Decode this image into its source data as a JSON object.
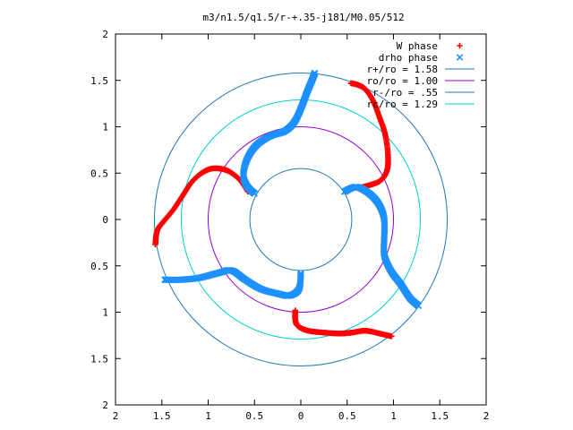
{
  "chart_data": {
    "type": "scatter",
    "title": "m3/n1.5/q1.5/r-+.35-j181/M0.05/512",
    "xlabel": "",
    "ylabel": "",
    "xlim": [
      -2,
      2
    ],
    "ylim": [
      -2,
      2
    ],
    "x_ticks": [
      -2,
      -1.5,
      -1,
      -0.5,
      0,
      0.5,
      1,
      1.5,
      2
    ],
    "y_ticks": [
      -2,
      -1.5,
      -1,
      -0.5,
      0,
      0.5,
      1,
      1.5,
      2
    ],
    "x_tick_labels": [
      "2",
      "1.5",
      "1",
      "0.5",
      "0",
      "0.5",
      "1",
      "1.5",
      "2"
    ],
    "y_tick_labels": [
      "2",
      "1.5",
      "1",
      "0.5",
      "0",
      "0.5",
      "1",
      "1.5",
      "2"
    ],
    "grid": false,
    "legend_position": "top-right",
    "series": [
      {
        "name": "W phase",
        "kind": "points",
        "marker": "+",
        "color": "#ff0000",
        "arms": [
          [
            [
              0.54,
              1.47
            ],
            [
              0.62,
              1.45
            ],
            [
              0.7,
              1.4
            ],
            [
              0.78,
              1.28
            ],
            [
              0.85,
              1.1
            ],
            [
              0.91,
              0.92
            ],
            [
              0.94,
              0.7
            ],
            [
              0.93,
              0.53
            ],
            [
              0.86,
              0.42
            ],
            [
              0.74,
              0.37
            ],
            [
              0.62,
              0.34
            ]
          ],
          [
            [
              -1.57,
              -0.27
            ],
            [
              -1.55,
              -0.12
            ],
            [
              -1.48,
              -0.02
            ],
            [
              -1.38,
              0.1
            ],
            [
              -1.28,
              0.25
            ],
            [
              -1.18,
              0.4
            ],
            [
              -1.07,
              0.5
            ],
            [
              -0.95,
              0.55
            ],
            [
              -0.8,
              0.53
            ],
            [
              -0.67,
              0.44
            ],
            [
              -0.6,
              0.35
            ],
            [
              -0.57,
              0.3
            ]
          ],
          [
            [
              -0.06,
              -0.98
            ],
            [
              -0.06,
              -1.08
            ],
            [
              -0.03,
              -1.15
            ],
            [
              0.08,
              -1.2
            ],
            [
              0.25,
              -1.22
            ],
            [
              0.42,
              -1.23
            ],
            [
              0.55,
              -1.22
            ],
            [
              0.7,
              -1.2
            ],
            [
              0.85,
              -1.23
            ],
            [
              0.98,
              -1.26
            ]
          ]
        ]
      },
      {
        "name": "drho phase",
        "kind": "points",
        "marker": "x",
        "color": "#1e90ff",
        "arms": [
          [
            [
              0.15,
              1.58
            ],
            [
              0.12,
              1.5
            ],
            [
              0.07,
              1.38
            ],
            [
              0.01,
              1.22
            ],
            [
              -0.07,
              1.05
            ],
            [
              -0.18,
              0.95
            ],
            [
              -0.33,
              0.9
            ],
            [
              -0.48,
              0.8
            ],
            [
              -0.58,
              0.65
            ],
            [
              -0.62,
              0.48
            ],
            [
              -0.58,
              0.36
            ],
            [
              -0.5,
              0.28
            ]
          ],
          [
            [
              -1.47,
              -0.65
            ],
            [
              -1.3,
              -0.65
            ],
            [
              -1.1,
              -0.63
            ],
            [
              -0.9,
              -0.58
            ],
            [
              -0.75,
              -0.55
            ],
            [
              -0.6,
              -0.65
            ],
            [
              -0.43,
              -0.75
            ],
            [
              -0.25,
              -0.8
            ],
            [
              -0.12,
              -0.82
            ],
            [
              -0.02,
              -0.75
            ],
            [
              0.0,
              -0.58
            ]
          ],
          [
            [
              0.47,
              0.3
            ],
            [
              0.6,
              0.35
            ],
            [
              0.75,
              0.27
            ],
            [
              0.85,
              0.15
            ],
            [
              0.9,
              0.0
            ],
            [
              0.9,
              -0.2
            ],
            [
              0.9,
              -0.38
            ],
            [
              0.97,
              -0.55
            ],
            [
              1.08,
              -0.7
            ],
            [
              1.18,
              -0.85
            ],
            [
              1.27,
              -0.93
            ]
          ]
        ]
      },
      {
        "name": "r+/ro = 1.58",
        "kind": "circle",
        "radius": 1.58,
        "color": "#1f77b4"
      },
      {
        "name": "ro/ro = 1.00",
        "kind": "circle",
        "radius": 1.0,
        "color": "#9400d3"
      },
      {
        "name": "r-/ro = .55",
        "kind": "circle",
        "radius": 0.55,
        "color": "#1f77b4"
      },
      {
        "name": "rc/ro = 1.29",
        "kind": "circle",
        "radius": 1.29,
        "color": "#00ced1"
      }
    ]
  }
}
